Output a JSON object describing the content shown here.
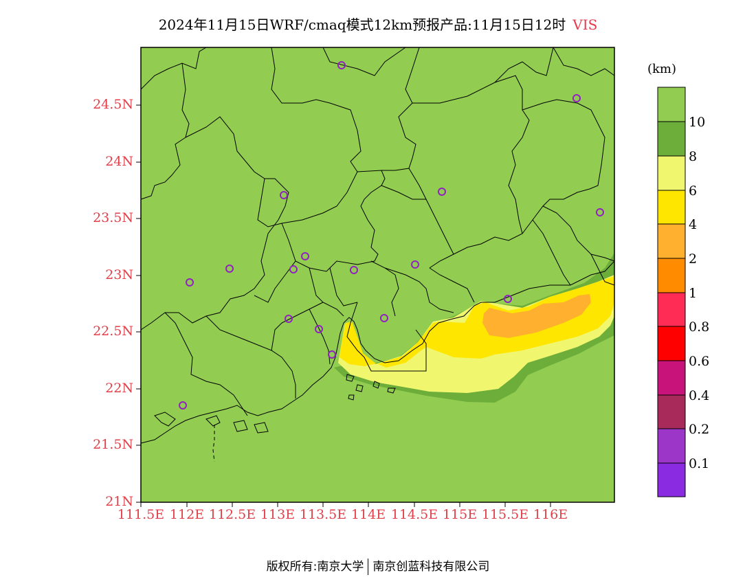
{
  "title": {
    "main": "2024年11月15日WRF/cmaq模式12km预报产品:11月15日12时",
    "variable": "VIS"
  },
  "axes": {
    "lat_labels": [
      "24.5N",
      "24N",
      "23.5N",
      "23N",
      "22.5N",
      "22N",
      "21.5N",
      "21N"
    ],
    "lon_labels": [
      "111.5E",
      "112E",
      "112.5E",
      "113E",
      "113.5E",
      "114E",
      "114.5E",
      "115E",
      "115.5E",
      "116E"
    ],
    "lon_range": [
      111.5,
      116.7
    ],
    "lat_range": [
      21.0,
      25.0
    ]
  },
  "colorbar": {
    "unit": "(km)",
    "labels": [
      "10",
      "8",
      "6",
      "4",
      "2",
      "1",
      "0.8",
      "0.6",
      "0.4",
      "0.2",
      "0.1"
    ],
    "colors": [
      "#92cd52",
      "#6dae3a",
      "#f0f76e",
      "#ffe600",
      "#ffb02e",
      "#ff8c00",
      "#ff2d55",
      "#ff0000",
      "#c8137a",
      "#a82a5a",
      "#9b36c8",
      "#8a2be2"
    ]
  },
  "map": {
    "background_color": "#92cd52",
    "city_marker_color": "#9020c0"
  },
  "footer": {
    "left": "版权所有:南京大学",
    "right": "南京创蓝科技有限公司"
  }
}
